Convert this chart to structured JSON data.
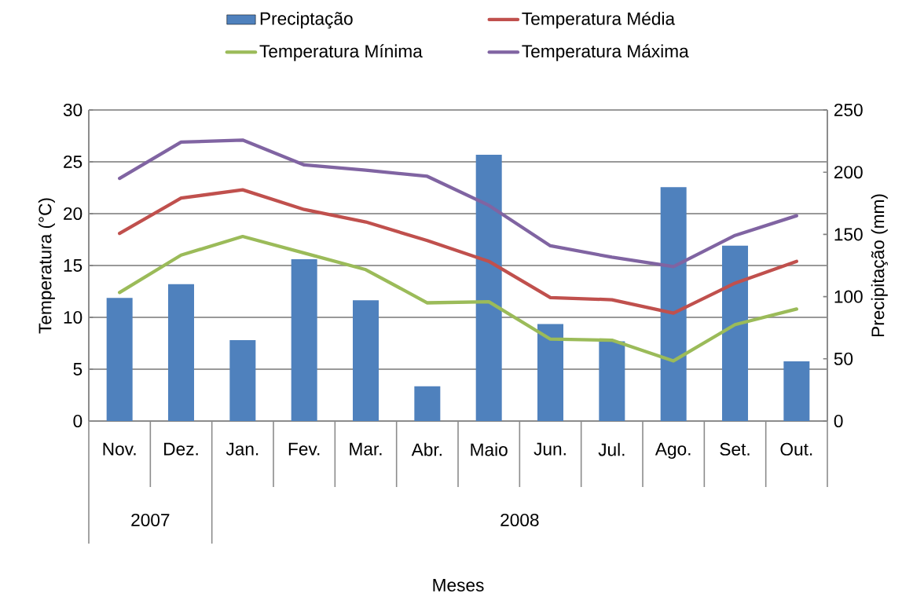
{
  "chart_data": {
    "type": "bar",
    "ylabel": "Temperatura (°C)",
    "y2label": "Precipitação (mm)",
    "categories": [
      "Nov.",
      "Dez.",
      "Jan.",
      "Fev.",
      "Mar.",
      "Abr.",
      "Maio",
      "Jun.",
      "Jul.",
      "Ago.",
      "Set.",
      "Out."
    ],
    "series": [
      {
        "name": "Preciptação",
        "axis": "y2",
        "color": "#4f81bd",
        "values": [
          99,
          110,
          65,
          130,
          97,
          28,
          214,
          78,
          64,
          188,
          141,
          48
        ]
      },
      {
        "name": "Temperatura Média",
        "type": "line",
        "color": "#c0504d",
        "values": [
          18.1,
          21.5,
          22.3,
          20.4,
          19.2,
          17.4,
          15.4,
          11.9,
          11.7,
          10.4,
          13.3,
          15.4
        ]
      },
      {
        "name": "Temperatura Mínima",
        "type": "line",
        "color": "#9bbb59",
        "values": [
          12.4,
          16.0,
          17.8,
          16.2,
          14.6,
          11.4,
          11.5,
          7.9,
          7.8,
          5.8,
          9.3,
          10.8
        ]
      },
      {
        "name": "Temperatura Máxima",
        "type": "line",
        "color": "#8064a2",
        "values": [
          23.4,
          26.9,
          27.1,
          24.7,
          24.2,
          23.6,
          20.8,
          16.9,
          15.8,
          14.9,
          17.9,
          19.8
        ]
      }
    ],
    "ylim": [
      0,
      30
    ],
    "yticks": [
      0,
      5,
      10,
      15,
      20,
      25,
      30
    ],
    "y2lim": [
      0,
      250
    ],
    "y2ticks": [
      0,
      50,
      100,
      150,
      200,
      250
    ],
    "annotations": [
      "2007",
      "2008",
      "Meses"
    ],
    "grid": "y",
    "legend": "top"
  }
}
